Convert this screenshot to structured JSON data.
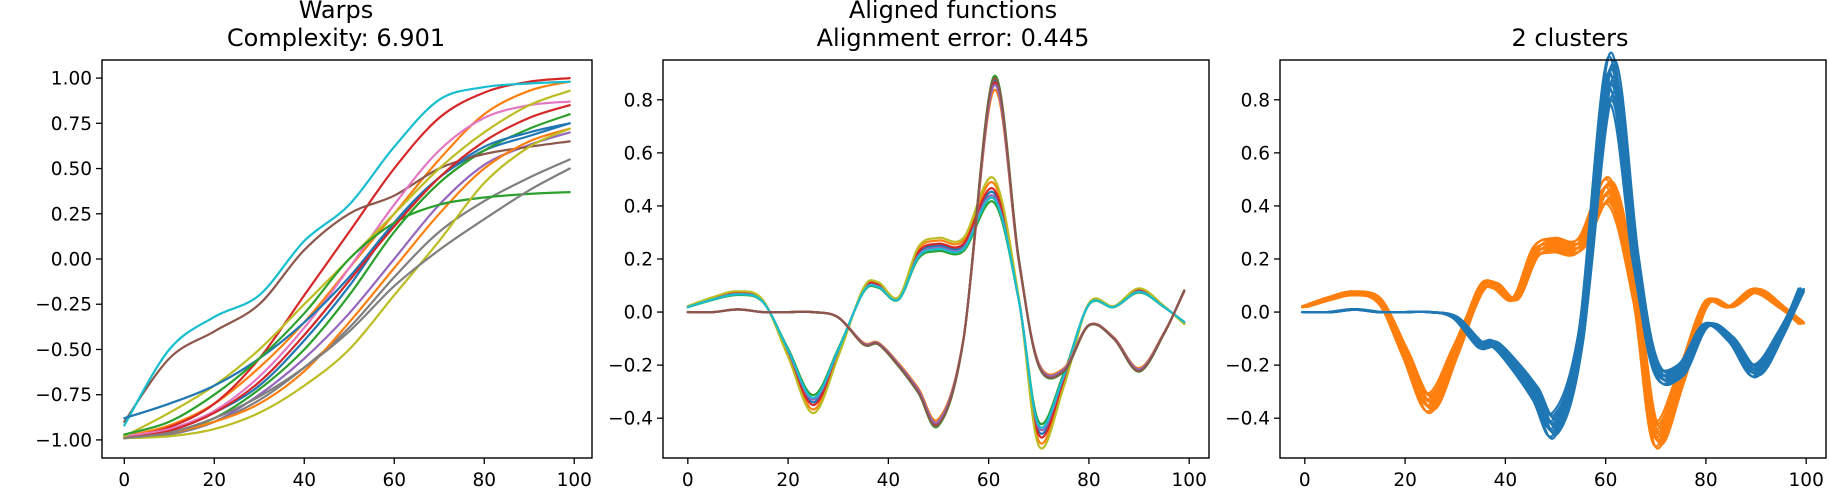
{
  "chart_data": [
    {
      "type": "line",
      "title": "Warps",
      "subtitle": "Complexity: 6.901",
      "xlim": [
        -4.95,
        103.95
      ],
      "ylim": [
        -1.1,
        1.1
      ],
      "xticks": [
        0,
        20,
        40,
        60,
        80,
        100
      ],
      "yticks": [
        -1.0,
        -0.75,
        -0.5,
        -0.25,
        0.0,
        0.25,
        0.5,
        0.75,
        1.0
      ],
      "ytick_labels": [
        "−1.00",
        "−0.75",
        "−0.50",
        "−0.25",
        "0.00",
        "0.25",
        "0.50",
        "0.75",
        "1.00"
      ],
      "grid": false,
      "x": [
        0,
        10,
        20,
        30,
        40,
        50,
        60,
        70,
        80,
        90,
        99
      ],
      "series": [
        {
          "color": "#1f77b4",
          "values": [
            -0.99,
            -0.95,
            -0.85,
            -0.7,
            -0.45,
            -0.15,
            0.2,
            0.45,
            0.6,
            0.68,
            0.75
          ]
        },
        {
          "color": "#ff7f0e",
          "values": [
            -0.98,
            -0.92,
            -0.8,
            -0.6,
            -0.35,
            -0.05,
            0.25,
            0.55,
            0.8,
            0.93,
            0.98
          ]
        },
        {
          "color": "#2ca02c",
          "values": [
            -0.99,
            -0.96,
            -0.88,
            -0.72,
            -0.5,
            -0.2,
            0.15,
            0.42,
            0.6,
            0.72,
            0.8
          ]
        },
        {
          "color": "#d62728",
          "values": [
            -0.99,
            -0.93,
            -0.8,
            -0.55,
            -0.2,
            0.15,
            0.5,
            0.78,
            0.92,
            0.98,
            1.0
          ]
        },
        {
          "color": "#9467bd",
          "values": [
            -0.99,
            -0.97,
            -0.9,
            -0.75,
            -0.55,
            -0.3,
            0.0,
            0.3,
            0.52,
            0.63,
            0.7
          ]
        },
        {
          "color": "#8c564b",
          "values": [
            -0.9,
            -0.55,
            -0.4,
            -0.25,
            0.05,
            0.25,
            0.35,
            0.5,
            0.58,
            0.62,
            0.65
          ]
        },
        {
          "color": "#e377c2",
          "values": [
            -0.98,
            -0.94,
            -0.84,
            -0.65,
            -0.38,
            -0.05,
            0.3,
            0.6,
            0.78,
            0.85,
            0.87
          ]
        },
        {
          "color": "#7f7f7f",
          "values": [
            -0.99,
            -0.97,
            -0.9,
            -0.78,
            -0.6,
            -0.38,
            -0.1,
            0.15,
            0.32,
            0.45,
            0.55
          ]
        },
        {
          "color": "#bcbd22",
          "values": [
            -0.98,
            -0.85,
            -0.7,
            -0.5,
            -0.25,
            0.0,
            0.25,
            0.5,
            0.7,
            0.85,
            0.93
          ]
        },
        {
          "color": "#17becf",
          "values": [
            -0.92,
            -0.5,
            -0.32,
            -0.2,
            0.1,
            0.3,
            0.62,
            0.88,
            0.95,
            0.97,
            0.98
          ]
        },
        {
          "color": "#1f77b4",
          "values": [
            -0.88,
            -0.8,
            -0.7,
            -0.55,
            -0.35,
            -0.1,
            0.2,
            0.45,
            0.62,
            0.7,
            0.75
          ]
        },
        {
          "color": "#ff7f0e",
          "values": [
            -0.99,
            -0.96,
            -0.9,
            -0.8,
            -0.62,
            -0.35,
            -0.05,
            0.25,
            0.5,
            0.65,
            0.72
          ]
        },
        {
          "color": "#2ca02c",
          "values": [
            -0.97,
            -0.9,
            -0.75,
            -0.55,
            -0.3,
            0.0,
            0.2,
            0.3,
            0.34,
            0.36,
            0.37
          ]
        },
        {
          "color": "#d62728",
          "values": [
            -0.99,
            -0.95,
            -0.85,
            -0.68,
            -0.42,
            -0.12,
            0.18,
            0.45,
            0.65,
            0.78,
            0.85
          ]
        },
        {
          "color": "#bcbd22",
          "values": [
            -0.99,
            -0.98,
            -0.94,
            -0.85,
            -0.7,
            -0.5,
            -0.2,
            0.1,
            0.42,
            0.62,
            0.72
          ]
        },
        {
          "color": "#7f7f7f",
          "values": [
            -0.99,
            -0.96,
            -0.88,
            -0.76,
            -0.6,
            -0.4,
            -0.15,
            0.05,
            0.22,
            0.38,
            0.5
          ]
        }
      ]
    },
    {
      "type": "line",
      "title": "Aligned functions",
      "subtitle": "Alignment error: 0.445",
      "xlim": [
        -4.95,
        103.95
      ],
      "ylim": [
        -0.55,
        0.95
      ],
      "xticks": [
        0,
        20,
        40,
        60,
        80,
        100
      ],
      "yticks": [
        -0.4,
        -0.2,
        0.0,
        0.2,
        0.4,
        0.6,
        0.8
      ],
      "ytick_labels": [
        "−0.4",
        "−0.2",
        "0.0",
        "0.2",
        "0.4",
        "0.6",
        "0.8"
      ],
      "grid": false,
      "x": [
        0,
        5,
        10,
        15,
        20,
        25,
        30,
        35,
        38,
        42,
        46,
        50,
        55,
        61,
        66,
        70,
        75,
        80,
        85,
        90,
        95,
        99
      ],
      "shape_a": [
        0.02,
        0.05,
        0.07,
        0.04,
        -0.15,
        -0.34,
        -0.15,
        0.08,
        0.1,
        0.05,
        0.22,
        0.25,
        0.25,
        0.45,
        0.05,
        -0.45,
        -0.25,
        0.03,
        0.02,
        0.08,
        0.02,
        -0.04
      ],
      "shape_b": [
        0.0,
        0.0,
        0.01,
        0.0,
        0.0,
        0.0,
        -0.02,
        -0.12,
        -0.12,
        -0.2,
        -0.3,
        -0.42,
        -0.1,
        0.87,
        0.2,
        -0.2,
        -0.22,
        -0.05,
        -0.1,
        -0.22,
        -0.08,
        0.08
      ],
      "series": [
        {
          "color": "#1f77b4",
          "shape": "a",
          "scale": 1.0
        },
        {
          "color": "#ff7f0e",
          "shape": "a",
          "scale": 1.08
        },
        {
          "color": "#2ca02c",
          "shape": "a",
          "scale": 0.92
        },
        {
          "color": "#d62728",
          "shape": "a",
          "scale": 1.03
        },
        {
          "color": "#9467bd",
          "shape": "a",
          "scale": 0.97
        },
        {
          "color": "#bcbd22",
          "shape": "a",
          "scale": 1.12
        },
        {
          "color": "#17becf",
          "shape": "a",
          "scale": 0.95
        },
        {
          "color": "#1f77b4",
          "shape": "b",
          "scale": 1.0
        },
        {
          "color": "#ff7f0e",
          "shape": "b",
          "scale": 0.96
        },
        {
          "color": "#2ca02c",
          "shape": "b",
          "scale": 1.02
        },
        {
          "color": "#d62728",
          "shape": "b",
          "scale": 0.99
        },
        {
          "color": "#9467bd",
          "shape": "b",
          "scale": 0.98
        },
        {
          "color": "#8c564b",
          "shape": "b",
          "scale": 1.01
        }
      ]
    },
    {
      "type": "line",
      "title": "2 clusters",
      "xlim": [
        -4.95,
        103.95
      ],
      "ylim": [
        -0.55,
        0.95
      ],
      "xticks": [
        0,
        20,
        40,
        60,
        80,
        100
      ],
      "yticks": [
        -0.4,
        -0.2,
        0.0,
        0.2,
        0.4,
        0.6,
        0.8
      ],
      "ytick_labels": [
        "−0.4",
        "−0.2",
        "0.0",
        "0.2",
        "0.4",
        "0.6",
        "0.8"
      ],
      "grid": false,
      "clusters": [
        {
          "color": "#ff7f0e",
          "shape": "a",
          "count": 14
        },
        {
          "color": "#1f77b4",
          "shape": "b",
          "count": 14
        }
      ]
    }
  ]
}
